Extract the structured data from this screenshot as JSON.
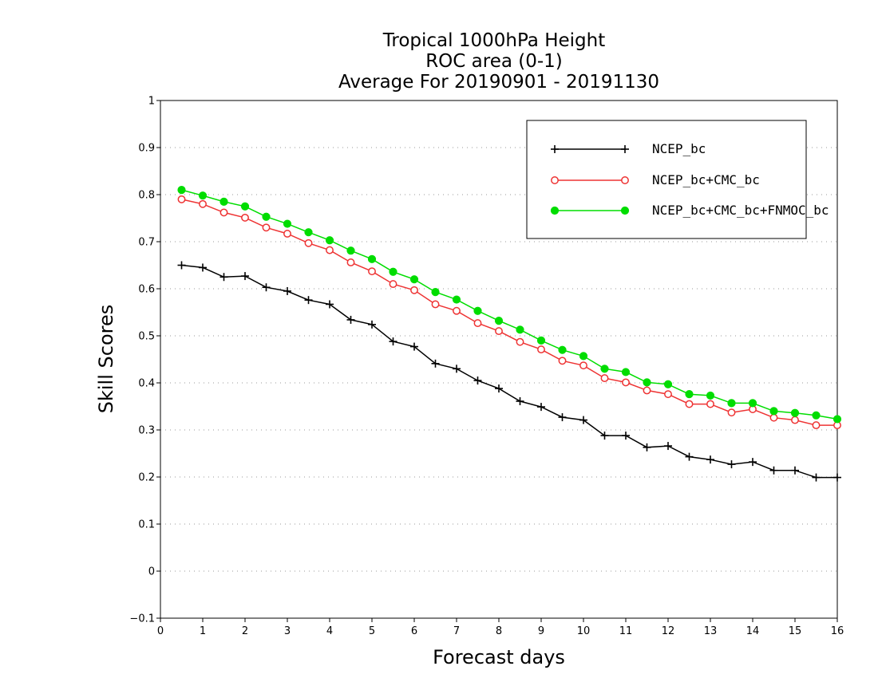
{
  "chart_data": {
    "type": "line",
    "title_lines": [
      "Tropical 1000hPa Height",
      "ROC area (0-1)",
      "Average For 20190901 - 20191130"
    ],
    "xlabel": "Forecast days",
    "ylabel": "Skill Scores",
    "xlim": [
      0,
      16
    ],
    "ylim": [
      -0.1,
      1
    ],
    "x_ticks": [
      "0",
      "1",
      "2",
      "3",
      "4",
      "5",
      "6",
      "7",
      "8",
      "9",
      "10",
      "11",
      "12",
      "13",
      "14",
      "15",
      "16"
    ],
    "y_ticks": [
      "−0.1",
      "0",
      "0.1",
      "0.2",
      "0.3",
      "0.4",
      "0.5",
      "0.6",
      "0.7",
      "0.8",
      "0.9",
      "1"
    ],
    "grid": "horizontal dotted",
    "legend_position": "top-right",
    "x": [
      0.5,
      1,
      1.5,
      2,
      2.5,
      3,
      3.5,
      4,
      4.5,
      5,
      5.5,
      6,
      6.5,
      7,
      7.5,
      8,
      8.5,
      9,
      9.5,
      10,
      10.5,
      11,
      11.5,
      12,
      12.5,
      13,
      13.5,
      14,
      14.5,
      15,
      15.5,
      16
    ],
    "series": [
      {
        "name": "NCEP_bc",
        "color": "#000000",
        "marker": "plus",
        "values": [
          0.65,
          0.645,
          0.625,
          0.627,
          0.603,
          0.595,
          0.576,
          0.567,
          0.534,
          0.524,
          0.488,
          0.477,
          0.441,
          0.43,
          0.405,
          0.388,
          0.361,
          0.349,
          0.327,
          0.321,
          0.288,
          0.288,
          0.263,
          0.266,
          0.243,
          0.237,
          0.227,
          0.232,
          0.214,
          0.214,
          0.199,
          0.199
        ]
      },
      {
        "name": "NCEP_bc+CMC_bc",
        "color": "#ee3333",
        "marker": "open-circle",
        "values": [
          0.79,
          0.78,
          0.762,
          0.751,
          0.73,
          0.717,
          0.697,
          0.682,
          0.656,
          0.637,
          0.61,
          0.597,
          0.567,
          0.553,
          0.527,
          0.51,
          0.487,
          0.471,
          0.447,
          0.437,
          0.41,
          0.401,
          0.384,
          0.376,
          0.355,
          0.355,
          0.337,
          0.344,
          0.326,
          0.321,
          0.31,
          0.31
        ]
      },
      {
        "name": "NCEP_bc+CMC_bc+FNMOC_bc",
        "color": "#00dd00",
        "marker": "filled-circle",
        "values": [
          0.81,
          0.798,
          0.785,
          0.775,
          0.753,
          0.738,
          0.72,
          0.703,
          0.681,
          0.663,
          0.636,
          0.62,
          0.593,
          0.577,
          0.553,
          0.532,
          0.513,
          0.49,
          0.47,
          0.457,
          0.43,
          0.423,
          0.401,
          0.397,
          0.376,
          0.373,
          0.357,
          0.357,
          0.34,
          0.336,
          0.331,
          0.323
        ]
      }
    ]
  }
}
